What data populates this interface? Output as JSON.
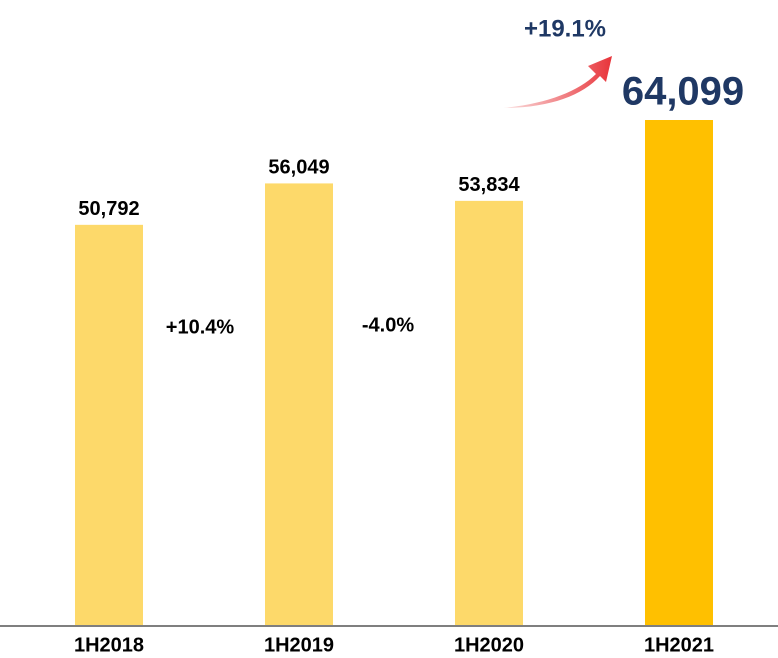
{
  "chart_data": {
    "type": "bar",
    "categories": [
      "1H2018",
      "1H2019",
      "1H2020",
      "1H2021"
    ],
    "values": [
      50792,
      56049,
      53834,
      64099
    ],
    "value_labels": [
      "50,792",
      "56,049",
      "53,834",
      "64,099"
    ],
    "colors": [
      "#FDD96A",
      "#FDD96A",
      "#FDD96A",
      "#FFC000"
    ],
    "annotations": [
      "+10.4%",
      "-4.0%",
      "+19.1%"
    ]
  }
}
